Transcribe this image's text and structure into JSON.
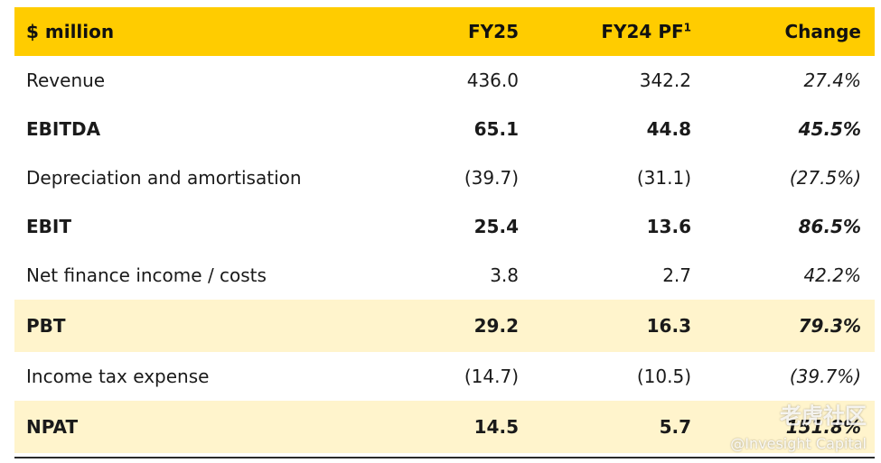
{
  "header": {
    "label": "$ million",
    "fy25": "FY25",
    "fy24": "FY24 PF",
    "fy24_sup": "1",
    "change": "Change"
  },
  "rows": [
    {
      "label": "Revenue",
      "fy25": "436.0",
      "fy24": "342.2",
      "change": "27.4%"
    },
    {
      "label": "EBITDA",
      "fy25": "65.1",
      "fy24": "44.8",
      "change": "45.5%"
    },
    {
      "label": "Depreciation and amortisation",
      "fy25": "(39.7)",
      "fy24": "(31.1)",
      "change": "(27.5%)"
    },
    {
      "label": "EBIT",
      "fy25": "25.4",
      "fy24": "13.6",
      "change": "86.5%"
    },
    {
      "label": "Net finance income / costs",
      "fy25": "3.8",
      "fy24": "2.7",
      "change": "42.2%"
    },
    {
      "label": "PBT",
      "fy25": "29.2",
      "fy24": "16.3",
      "change": "79.3%"
    },
    {
      "label": "Income tax expense",
      "fy25": "(14.7)",
      "fy24": "(10.5)",
      "change": "(39.7%)"
    },
    {
      "label": "NPAT",
      "fy25": "14.5",
      "fy24": "5.7",
      "change": "151.8%"
    }
  ],
  "watermark": {
    "brand": "老虎社区",
    "handle": "@Invesight Capital"
  },
  "colors": {
    "header_bg": "#FFCC00",
    "highlight_bg": "#FFF4CC"
  }
}
